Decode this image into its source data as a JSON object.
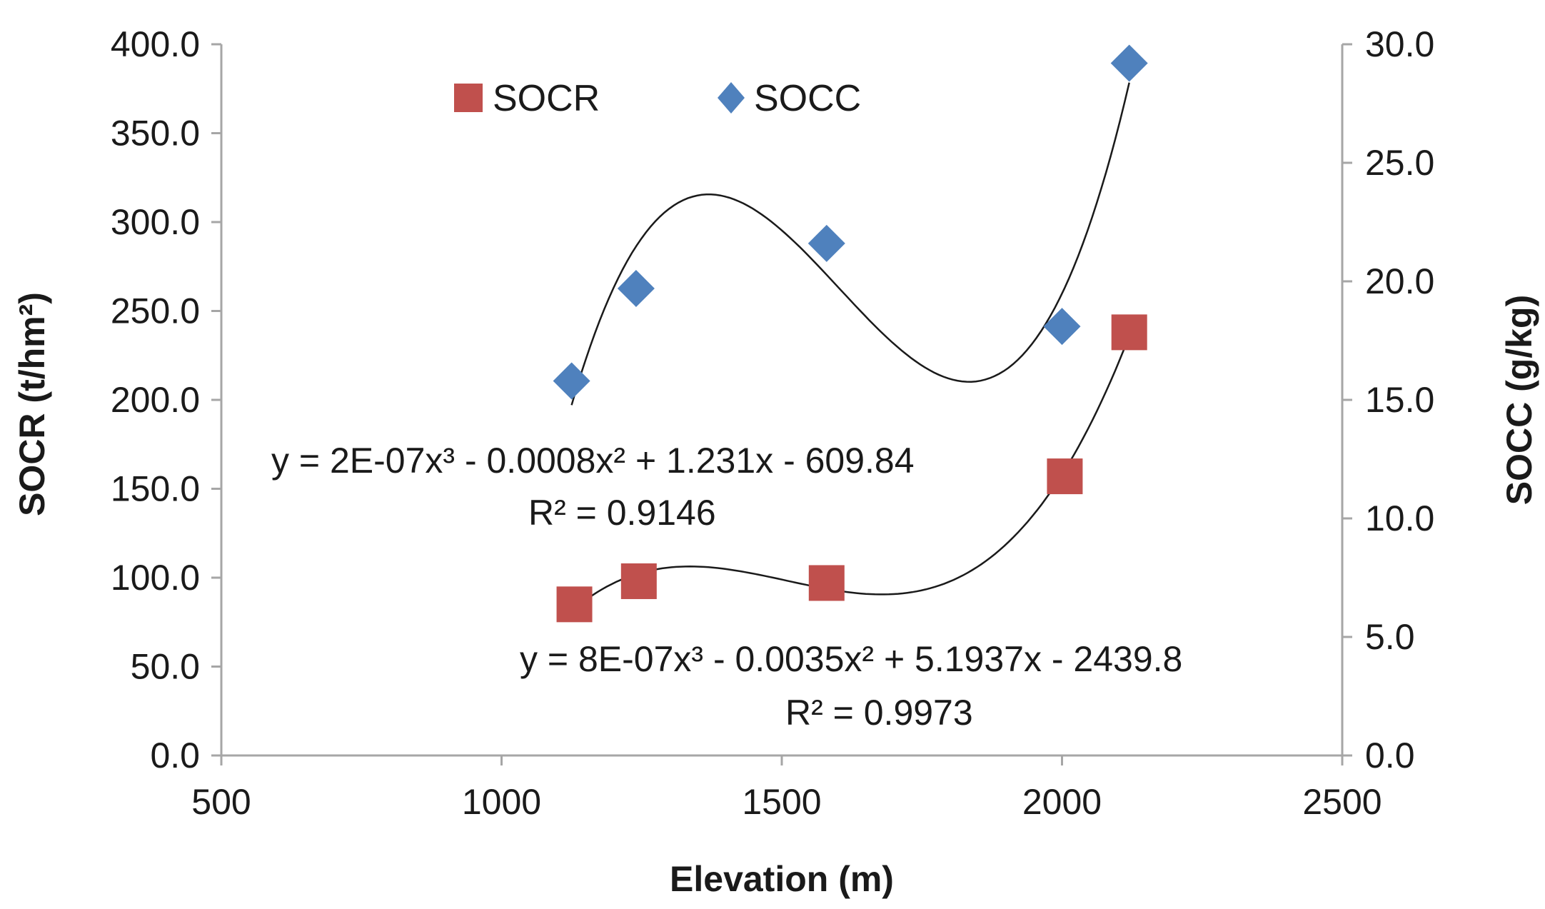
{
  "chart_data": {
    "type": "scatter",
    "title": "",
    "xlabel": "Elevation (m)",
    "ylabel_left": "SOCR (t/hm²)",
    "ylabel_right": "SOCC (g/kg)",
    "xlim": [
      500,
      2500
    ],
    "ylim_left": [
      0,
      400
    ],
    "ylim_right": [
      0,
      30
    ],
    "x_ticks": [
      "500",
      "1000",
      "1500",
      "2000",
      "2500"
    ],
    "y_left_ticks": [
      "0.0",
      "50.0",
      "100.0",
      "150.0",
      "200.0",
      "250.0",
      "300.0",
      "350.0",
      "400.0"
    ],
    "y_right_ticks": [
      "0.0",
      "5.0",
      "10.0",
      "15.0",
      "20.0",
      "25.0",
      "30.0"
    ],
    "legend_position": "top",
    "series": [
      {
        "name": "SOCR",
        "axis": "left",
        "marker": "square",
        "color": "#c0504d",
        "x": [
          1130,
          1245,
          1580,
          2005,
          2120
        ],
        "y": [
          85,
          98,
          97,
          157,
          238
        ],
        "trendline": {
          "type": "polynomial3",
          "x_range": [
            1130,
            2120
          ],
          "y_range": [
            80,
            238
          ],
          "equation": "y = 8E-07x³ - 0.0035x² + 5.1937x - 2439.8",
          "r2": "R² = 0.9973"
        }
      },
      {
        "name": "SOCC",
        "axis": "right",
        "marker": "diamond",
        "color": "#4f81bd",
        "x": [
          1125,
          1240,
          1580,
          2000,
          2120
        ],
        "y": [
          15.8,
          19.7,
          21.6,
          18.1,
          29.2
        ],
        "trendline": {
          "type": "polynomial3",
          "x_range": [
            1125,
            2120
          ],
          "y_range": [
            14.6,
            29.2
          ],
          "equation": "y = 2E-07x³ - 0.0008x² + 1.231x - 609.84",
          "r2": "R² = 0.9146"
        }
      }
    ]
  }
}
